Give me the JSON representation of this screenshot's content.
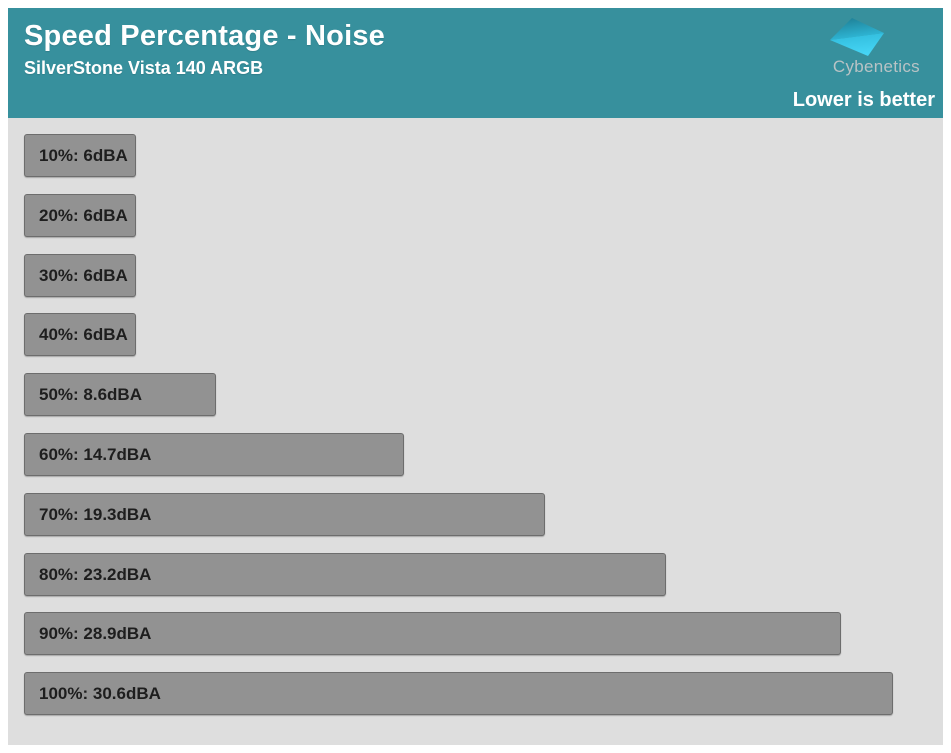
{
  "header": {
    "title": "Speed Percentage - Noise",
    "subtitle": "SilverStone Vista 140 ARGB",
    "brand": "Cybenetics",
    "note": "Lower is better"
  },
  "colors": {
    "header_bg": "#37909d",
    "chart_bg": "#dedede",
    "bar_fill": "#929292",
    "bar_border": "#6d6d6d",
    "bar_text": "#1e1e1e",
    "brand_text": "#b8c3c5",
    "note_text": "#ffffff",
    "logo_dark": "#1d7b90",
    "logo_mid": "#2fb9d9",
    "logo_bright": "#45d5f5"
  },
  "chart_data": {
    "type": "bar",
    "orientation": "horizontal",
    "title": "Speed Percentage - Noise",
    "subtitle": "SilverStone Vista 140 ARGB",
    "note": "Lower is better",
    "unit": "dBA",
    "categories": [
      "10%",
      "20%",
      "30%",
      "40%",
      "50%",
      "60%",
      "70%",
      "80%",
      "90%",
      "100%"
    ],
    "values": [
      6,
      6,
      6,
      6,
      8.6,
      14.7,
      19.3,
      23.2,
      28.9,
      30.6
    ],
    "labels": [
      "10%: 6dBA",
      "20%: 6dBA",
      "30%: 6dBA",
      "40%: 6dBA",
      "50%: 8.6dBA",
      "60%: 14.7dBA",
      "70%: 19.3dBA",
      "80%: 23.2dBA",
      "90%: 28.9dBA",
      "100%: 30.6dBA"
    ],
    "xlim": [
      2.4,
      30.6
    ],
    "grid": false,
    "legend": false,
    "bar_labels_inside": true
  }
}
